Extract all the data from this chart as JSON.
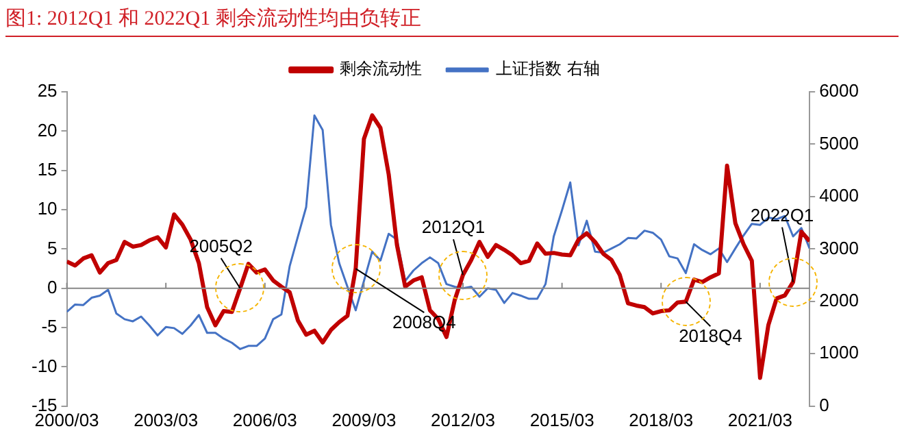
{
  "chart_data": {
    "type": "line",
    "title": "图1:  2012Q1 和 2022Q1 剩余流动性均由负转正",
    "x": [
      "2000-03",
      "2000-06",
      "2000-09",
      "2000-12",
      "2001-03",
      "2001-06",
      "2001-09",
      "2001-12",
      "2002-03",
      "2002-06",
      "2002-09",
      "2002-12",
      "2003-03",
      "2003-06",
      "2003-09",
      "2003-12",
      "2004-03",
      "2004-06",
      "2004-09",
      "2004-12",
      "2005-03",
      "2005-06",
      "2005-09",
      "2005-12",
      "2006-03",
      "2006-06",
      "2006-09",
      "2006-12",
      "2007-03",
      "2007-06",
      "2007-09",
      "2007-12",
      "2008-03",
      "2008-06",
      "2008-09",
      "2008-12",
      "2009-03",
      "2009-06",
      "2009-09",
      "2009-12",
      "2010-03",
      "2010-06",
      "2010-09",
      "2010-12",
      "2011-03",
      "2011-06",
      "2011-09",
      "2011-12",
      "2012-03",
      "2012-06",
      "2012-09",
      "2012-12",
      "2013-03",
      "2013-06",
      "2013-09",
      "2013-12",
      "2014-03",
      "2014-06",
      "2014-09",
      "2014-12",
      "2015-03",
      "2015-06",
      "2015-09",
      "2015-12",
      "2016-03",
      "2016-06",
      "2016-09",
      "2016-12",
      "2017-03",
      "2017-06",
      "2017-09",
      "2017-12",
      "2018-03",
      "2018-06",
      "2018-09",
      "2018-12",
      "2019-03",
      "2019-06",
      "2019-09",
      "2019-12",
      "2020-03",
      "2020-06",
      "2020-09",
      "2020-12",
      "2021-03",
      "2021-06",
      "2021-09",
      "2021-12",
      "2022-03",
      "2022-06",
      "2022-09"
    ],
    "series": [
      {
        "name": "剩余流动性",
        "color": "#c00000",
        "values": [
          3.4,
          2.9,
          3.8,
          4.2,
          2.0,
          3.2,
          3.6,
          5.9,
          5.3,
          5.5,
          6.1,
          6.5,
          5.2,
          9.4,
          8.1,
          6.2,
          3.2,
          -2.4,
          -4.7,
          -2.9,
          -3.0,
          0,
          3.1,
          2.0,
          2.4,
          1.0,
          0.2,
          -0.5,
          -4.1,
          -5.9,
          -5.4,
          -6.9,
          -5.3,
          -4.3,
          -3.5,
          2.5,
          19.0,
          22.0,
          20.4,
          14.5,
          5.5,
          0.2,
          1.0,
          1.4,
          -2.8,
          -3.9,
          -6.2,
          -1.5,
          1.7,
          3.6,
          5.9,
          4.0,
          5.5,
          4.9,
          4.2,
          3.2,
          3.5,
          5.7,
          4.4,
          4.5,
          4.3,
          4.2,
          6.2,
          7.0,
          5.9,
          4.4,
          3.6,
          1.7,
          -1.9,
          -2.2,
          -2.4,
          -3.2,
          -2.9,
          -2.8,
          -1.8,
          -1.7,
          1.1,
          0.8,
          1.4,
          1.9,
          15.6,
          8.3,
          5.6,
          3.5,
          -11.4,
          -4.7,
          -1.3,
          -0.9,
          0.8,
          7.2,
          6.0
        ]
      },
      {
        "name": "上证指数 右轴",
        "color": "#4472c4",
        "axis": "y2",
        "values": [
          1800,
          1940,
          1930,
          2070,
          2110,
          2220,
          1770,
          1660,
          1620,
          1710,
          1540,
          1350,
          1510,
          1490,
          1380,
          1540,
          1740,
          1400,
          1400,
          1290,
          1210,
          1090,
          1150,
          1150,
          1290,
          1660,
          1750,
          2670,
          3240,
          3800,
          5550,
          5270,
          3460,
          2730,
          2280,
          1830,
          2390,
          2950,
          2780,
          3290,
          3180,
          2390,
          2590,
          2730,
          2840,
          2730,
          2330,
          2280,
          2250,
          2280,
          2090,
          2250,
          2220,
          1970,
          2160,
          2110,
          2050,
          2050,
          2330,
          3240,
          3740,
          4270,
          3070,
          3540,
          2950,
          2930,
          3010,
          3090,
          3210,
          3200,
          3350,
          3310,
          3180,
          2860,
          2820,
          2540,
          3090,
          2980,
          2900,
          3010,
          2750,
          3010,
          3260,
          3480,
          3460,
          3600,
          3570,
          3630,
          3240,
          3400,
          3010
        ]
      }
    ],
    "xlim": [
      "2000-03",
      "2022-09"
    ],
    "xticks": [
      {
        "value": "2000-03",
        "label": "2000/03"
      },
      {
        "value": "2003-03",
        "label": "2003/03"
      },
      {
        "value": "2006-03",
        "label": "2006/03"
      },
      {
        "value": "2009-03",
        "label": "2009/03"
      },
      {
        "value": "2012-03",
        "label": "2012/03"
      },
      {
        "value": "2015-03",
        "label": "2015/03"
      },
      {
        "value": "2018-03",
        "label": "2018/03"
      },
      {
        "value": "2021-03",
        "label": "2021/03"
      }
    ],
    "ylim": [
      -15,
      25
    ],
    "yticks": [
      -15,
      -10,
      -5,
      0,
      5,
      10,
      15,
      20,
      25
    ],
    "y2lim": [
      0,
      6000
    ],
    "y2ticks": [
      0,
      1000,
      2000,
      3000,
      4000,
      5000,
      6000
    ],
    "legend": "top",
    "annotations": [
      {
        "text": "2005Q2",
        "x": "2005-06",
        "y": 0
      },
      {
        "text": "2008Q4",
        "x": "2008-12",
        "y": 2.5
      },
      {
        "text": "2012Q1",
        "x": "2012-03",
        "y": 1.7
      },
      {
        "text": "2018Q4",
        "x": "2018-12",
        "y": -1.7
      },
      {
        "text": "2022Q1",
        "x": "2022-03",
        "y": 0.8
      }
    ]
  }
}
